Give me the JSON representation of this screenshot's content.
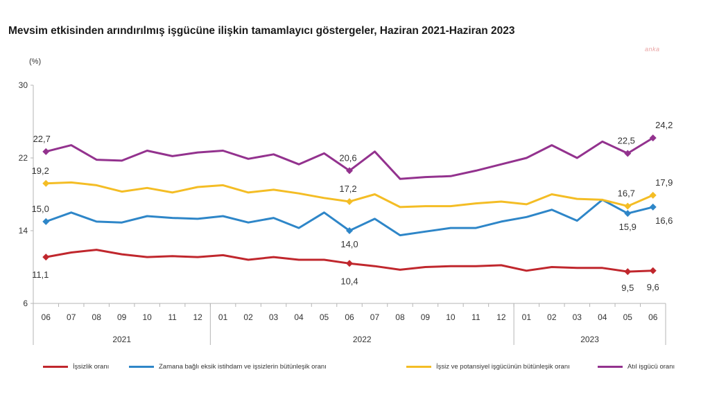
{
  "title": "Mevsim etkisinden arındırılmış işgücüne ilişkin tamamlayıcı göstergeler, Haziran 2021-Haziran 2023",
  "watermark": "anka",
  "chart_data": {
    "type": "line",
    "ylabel": "(%)",
    "ylim": [
      6,
      30
    ],
    "yticks": [
      6,
      14,
      22,
      30
    ],
    "grid": false,
    "legend_position": "bottom",
    "categories": [
      "06",
      "07",
      "08",
      "09",
      "10",
      "11",
      "12",
      "01",
      "02",
      "03",
      "04",
      "05",
      "06",
      "07",
      "08",
      "09",
      "10",
      "11",
      "12",
      "01",
      "02",
      "03",
      "04",
      "05",
      "06"
    ],
    "years": [
      {
        "label": "2021",
        "start": 0,
        "end": 6
      },
      {
        "label": "2022",
        "start": 7,
        "end": 18
      },
      {
        "label": "2023",
        "start": 19,
        "end": 24
      }
    ],
    "series": [
      {
        "name": "İşsizlik oranı",
        "color": "#c0272d",
        "values": [
          11.1,
          11.6,
          11.9,
          11.4,
          11.1,
          11.2,
          11.1,
          11.3,
          10.8,
          11.1,
          10.8,
          10.8,
          10.4,
          10.1,
          9.7,
          10.0,
          10.1,
          10.1,
          10.2,
          9.6,
          10.0,
          9.9,
          9.9,
          9.5,
          9.6
        ],
        "markers": [
          0,
          12,
          23,
          24
        ],
        "labels": [
          {
            "i": 0,
            "text": "11,1"
          },
          {
            "i": 12,
            "text": "10,4"
          },
          {
            "i": 23,
            "text": "9,5"
          },
          {
            "i": 24,
            "text": "9,6"
          }
        ]
      },
      {
        "name": "Zamana bağlı eksik istihdam ve işsizlerin bütünleşik oranı",
        "color": "#2e86c8",
        "values": [
          15.0,
          16.0,
          15.0,
          14.9,
          15.6,
          15.4,
          15.3,
          15.6,
          14.9,
          15.4,
          14.3,
          16.0,
          14.0,
          15.3,
          13.5,
          13.9,
          14.3,
          14.3,
          15.0,
          15.5,
          16.3,
          15.1,
          17.4,
          15.9,
          16.6
        ],
        "markers": [
          0,
          12,
          23,
          24
        ],
        "labels": [
          {
            "i": 0,
            "text": "15,0"
          },
          {
            "i": 12,
            "text": "14,0"
          },
          {
            "i": 23,
            "text": "15,9"
          },
          {
            "i": 24,
            "text": "16,6"
          }
        ]
      },
      {
        "name": "İşsiz ve potansiyel işgücünün bütünleşik oranı",
        "color": "#f4bd25",
        "values": [
          19.2,
          19.3,
          19.0,
          18.3,
          18.7,
          18.2,
          18.8,
          19.0,
          18.2,
          18.5,
          18.1,
          17.6,
          17.2,
          18.0,
          16.6,
          16.7,
          16.7,
          17.0,
          17.2,
          16.9,
          18.0,
          17.5,
          17.4,
          16.7,
          17.9
        ],
        "markers": [
          0,
          12,
          23,
          24
        ],
        "labels": [
          {
            "i": 0,
            "text": "19,2"
          },
          {
            "i": 12,
            "text": "17,2"
          },
          {
            "i": 23,
            "text": "16,7"
          },
          {
            "i": 24,
            "text": "17,9"
          }
        ]
      },
      {
        "name": "Atıl işgücü oranı",
        "color": "#93328e",
        "values": [
          22.7,
          23.4,
          21.8,
          21.7,
          22.8,
          22.2,
          22.6,
          22.8,
          21.9,
          22.4,
          21.3,
          22.5,
          20.6,
          22.7,
          19.7,
          19.9,
          20.0,
          20.6,
          21.3,
          22.0,
          23.4,
          22.0,
          23.8,
          22.5,
          24.2
        ],
        "markers": [
          0,
          12,
          23,
          24
        ],
        "labels": [
          {
            "i": 0,
            "text": "22,7"
          },
          {
            "i": 12,
            "text": "20,6"
          },
          {
            "i": 23,
            "text": "22,5"
          },
          {
            "i": 24,
            "text": "24,2"
          }
        ]
      }
    ]
  }
}
